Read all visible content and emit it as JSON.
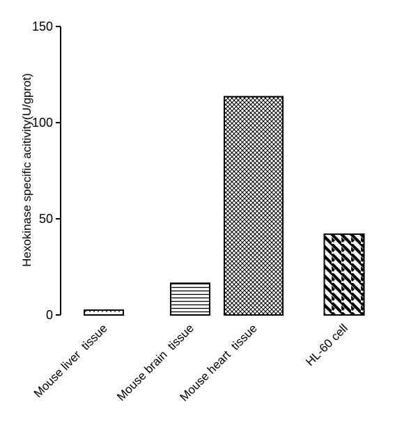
{
  "chart_data": {
    "type": "bar",
    "title": "",
    "xlabel": "",
    "ylabel": "Hexokinase specific acitivity(U/gprot)",
    "ylim": [
      0,
      150
    ],
    "yticks": [
      0,
      50,
      100,
      150
    ],
    "categories": [
      "Mouse liver  tissue",
      "Mouse brain  tissue",
      "Mouse heart  tissue",
      "HL-60 cell"
    ],
    "values": [
      2.5,
      16.5,
      113.5,
      42
    ],
    "patterns": [
      "dots",
      "horizontal-lines",
      "crosshatch",
      "diagonal-stripes"
    ],
    "bar_fill_color": "#ffffff",
    "bar_stroke_color": "#000000",
    "grid": false,
    "legend": "none"
  }
}
